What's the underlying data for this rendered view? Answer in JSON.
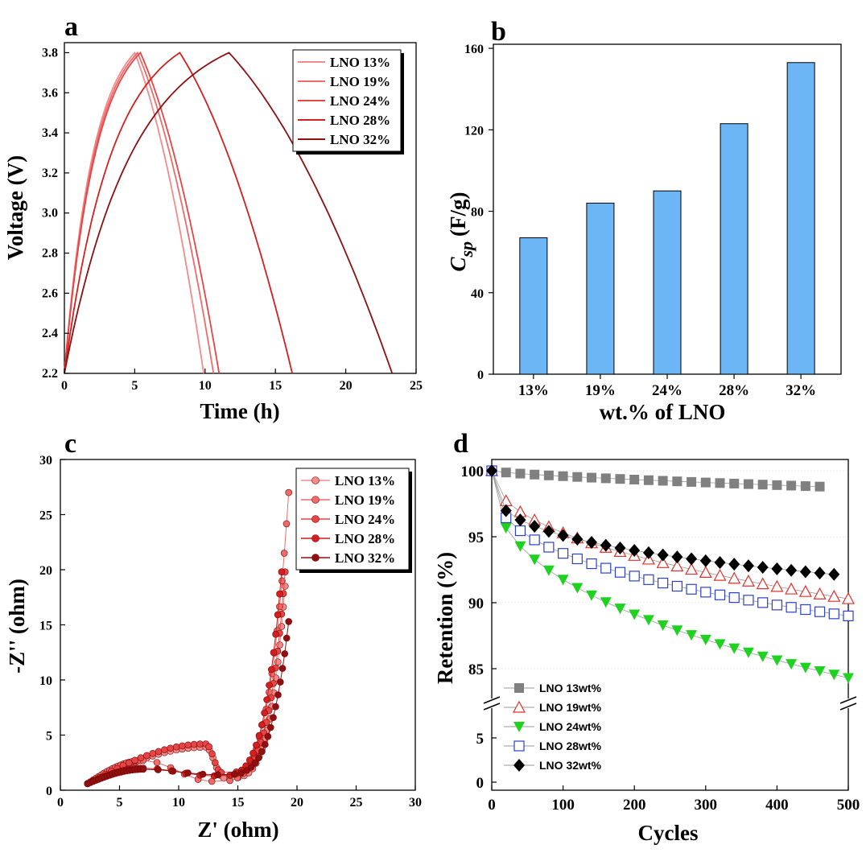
{
  "colors": {
    "red_shades": [
      "#f28b8b",
      "#ee6b6b",
      "#e64545",
      "#d21f1f",
      "#8e1010"
    ],
    "bar_fill": "#6cb6f5",
    "d_series": [
      "#808080",
      "#e0302a",
      "#1fd21f",
      "#2b3fd1",
      "#000000"
    ]
  },
  "chart_data": [
    {
      "panel": "a",
      "type": "line",
      "xlabel": "Time (h)",
      "ylabel": "Voltage (V)",
      "xlim": [
        0,
        25
      ],
      "ylim": [
        2.2,
        3.85
      ],
      "xticks": [
        "0",
        "5",
        "10",
        "15",
        "20",
        "25"
      ],
      "yticks": [
        "2.2",
        "2.4",
        "2.6",
        "2.8",
        "3.0",
        "3.2",
        "3.4",
        "3.6",
        "3.8"
      ],
      "legend_position": "top-right",
      "series": [
        {
          "name": "LNO 13%",
          "color": "#f28b8b",
          "peak_time": 5.0,
          "end_time": 9.9
        },
        {
          "name": "LNO 19%",
          "color": "#ee6b6b",
          "peak_time": 5.2,
          "end_time": 10.6
        },
        {
          "name": "LNO 24%",
          "color": "#e64545",
          "peak_time": 5.4,
          "end_time": 11.0
        },
        {
          "name": "LNO 28%",
          "color": "#d21f1f",
          "peak_time": 8.2,
          "end_time": 16.2
        },
        {
          "name": "LNO 32%",
          "color": "#8e1010",
          "peak_time": 11.7,
          "end_time": 23.3
        }
      ]
    },
    {
      "panel": "b",
      "type": "bar",
      "xlabel": "wt.% of LNO",
      "ylabel_main": "C",
      "ylabel_sub": "sp",
      "ylabel_unit": "(F/g)",
      "categories": [
        "13%",
        "19%",
        "24%",
        "28%",
        "32%"
      ],
      "values": [
        67,
        84,
        90,
        123,
        153
      ],
      "ylim": [
        0,
        162
      ],
      "yticks": [
        "0",
        "40",
        "80",
        "120",
        "160"
      ]
    },
    {
      "panel": "c",
      "type": "scatter",
      "xlabel": "Z' (ohm)",
      "ylabel": "-Z'' (ohm)",
      "xlim": [
        0,
        30
      ],
      "ylim": [
        0,
        30
      ],
      "xticks": [
        "0",
        "5",
        "10",
        "15",
        "20",
        "25",
        "30"
      ],
      "yticks": [
        "0",
        "5",
        "10",
        "15",
        "20",
        "25",
        "30"
      ],
      "legend_position": "top-right",
      "series": [
        {
          "name": "LNO 13%",
          "color": "#f28b8b",
          "x0": 2.3,
          "arc_peak_x": 12.3,
          "arc_peak": 3.9,
          "arc_min_x": 13.8,
          "arc_min": 1.1,
          "top_x": 19.0,
          "top_y": 18.5
        },
        {
          "name": "LNO 19%",
          "color": "#ee6b6b",
          "x0": 2.3,
          "arc_peak_x": 7.0,
          "arc_peak": 2.7,
          "arc_min_x": 12.8,
          "arc_min": 0.8,
          "top_x": 19.3,
          "top_y": 27.0
        },
        {
          "name": "LNO 24%",
          "color": "#e64545",
          "x0": 2.3,
          "arc_peak_x": 12.3,
          "arc_peak": 4.2,
          "arc_min_x": 13.6,
          "arc_min": 1.6,
          "top_x": 19.0,
          "top_y": 19.8
        },
        {
          "name": "LNO 28%",
          "color": "#d21f1f",
          "x0": 2.3,
          "arc_peak_x": 7.0,
          "arc_peak": 2.0,
          "arc_min_x": 13.0,
          "arc_min": 1.3,
          "top_x": 18.7,
          "top_y": 19.8
        },
        {
          "name": "LNO 32%",
          "color": "#8e1010",
          "x0": 2.3,
          "arc_peak_x": 7.0,
          "arc_peak": 1.9,
          "arc_min_x": 13.3,
          "arc_min": 1.4,
          "top_x": 19.3,
          "top_y": 15.3
        }
      ]
    },
    {
      "panel": "d",
      "type": "scatter",
      "xlabel": "Cycles",
      "ylabel": "Retention (%)",
      "xlim": [
        0,
        500
      ],
      "ylim_upper": [
        83,
        101
      ],
      "ylim_lower": [
        0,
        10
      ],
      "xticks": [
        "0",
        "100",
        "200",
        "300",
        "400",
        "500"
      ],
      "yticks": [
        "0",
        "5",
        "85",
        "90",
        "95",
        "100"
      ],
      "axis_break": true,
      "legend_position": "bottom-left",
      "series": [
        {
          "name": "LNO 13wt%",
          "marker": "square-filled",
          "color": "#808080",
          "x_end": 460,
          "final": 98.8,
          "k": 0.7
        },
        {
          "name": "LNO 19wt%",
          "marker": "triangle-up-open",
          "color": "#e0302a",
          "x_end": 500,
          "final": 90.3,
          "k": 0.45
        },
        {
          "name": "LNO 24wt%",
          "marker": "triangle-down-filled",
          "color": "#1fd21f",
          "x_end": 500,
          "final": 84.3,
          "k": 0.4
        },
        {
          "name": "LNO 28wt%",
          "marker": "square-open",
          "color": "#2b3fd1",
          "x_end": 500,
          "final": 89.0,
          "k": 0.35
        },
        {
          "name": "LNO 32wt%",
          "marker": "diamond-filled",
          "color": "#000000",
          "x_end": 490,
          "final": 92.1,
          "k": 0.3
        }
      ]
    }
  ]
}
